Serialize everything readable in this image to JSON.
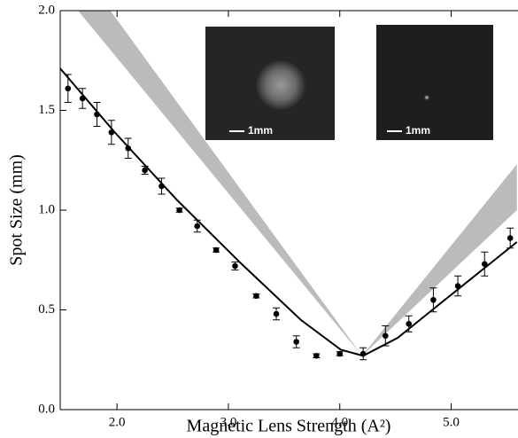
{
  "chart_data": {
    "type": "scatter",
    "x_label": "Magnetic Lens Strength (A²)",
    "y_label": "Spot Size (mm)",
    "xlim": [
      1.49,
      5.6
    ],
    "ylim": [
      0,
      2.0
    ],
    "xticks": [
      {
        "value": 2,
        "label": "2.0"
      },
      {
        "value": 3,
        "label": "3.0"
      },
      {
        "value": 4,
        "label": "4.0"
      },
      {
        "value": 5,
        "label": "5.0"
      }
    ],
    "yticks": [
      {
        "value": 0,
        "label": "0.0"
      },
      {
        "value": 0.5,
        "label": "0.5"
      },
      {
        "value": 1,
        "label": "1.0"
      },
      {
        "value": 1.5,
        "label": "1.5"
      },
      {
        "value": 2,
        "label": "2.0"
      }
    ],
    "band": {
      "color": "#bbbbbb",
      "outer": {
        "x": [
          1.65,
          4.2,
          5.59
        ],
        "values": [
          2.0,
          0.27,
          1.23
        ]
      },
      "inner": {
        "x": [
          1.94,
          4.2,
          5.59
        ],
        "values": [
          2.0,
          0.27,
          1.0
        ]
      }
    },
    "series": [
      {
        "type": "scatter",
        "color": "#000000",
        "x": [
          1.56,
          1.69,
          1.82,
          1.95,
          2.1,
          2.25,
          2.4,
          2.56,
          2.72,
          2.89,
          3.06,
          3.25,
          3.43,
          3.61,
          3.79,
          4.0,
          4.21,
          4.41,
          4.62,
          4.84,
          5.06,
          5.3,
          5.53
        ],
        "values": [
          1.61,
          1.56,
          1.48,
          1.39,
          1.31,
          1.2,
          1.12,
          1.0,
          0.92,
          0.8,
          0.72,
          0.57,
          0.48,
          0.34,
          0.27,
          0.28,
          0.28,
          0.37,
          0.43,
          0.55,
          0.62,
          0.73,
          0.86
        ],
        "errors": [
          0.07,
          0.05,
          0.06,
          0.06,
          0.05,
          0.02,
          0.04,
          0.01,
          0.03,
          0.01,
          0.02,
          0.01,
          0.03,
          0.03,
          0.01,
          0.01,
          0.03,
          0.05,
          0.04,
          0.06,
          0.05,
          0.06,
          0.05
        ]
      },
      {
        "type": "line",
        "color": "#000000",
        "x": [
          1.49,
          1.98,
          2.54,
          3.1,
          3.65,
          4.01,
          4.21,
          4.52,
          4.92,
          5.59
        ],
        "values": [
          1.71,
          1.39,
          1.05,
          0.74,
          0.45,
          0.3,
          0.27,
          0.36,
          0.54,
          0.84
        ]
      }
    ],
    "annotations": [
      "1mm",
      "1mm"
    ]
  }
}
